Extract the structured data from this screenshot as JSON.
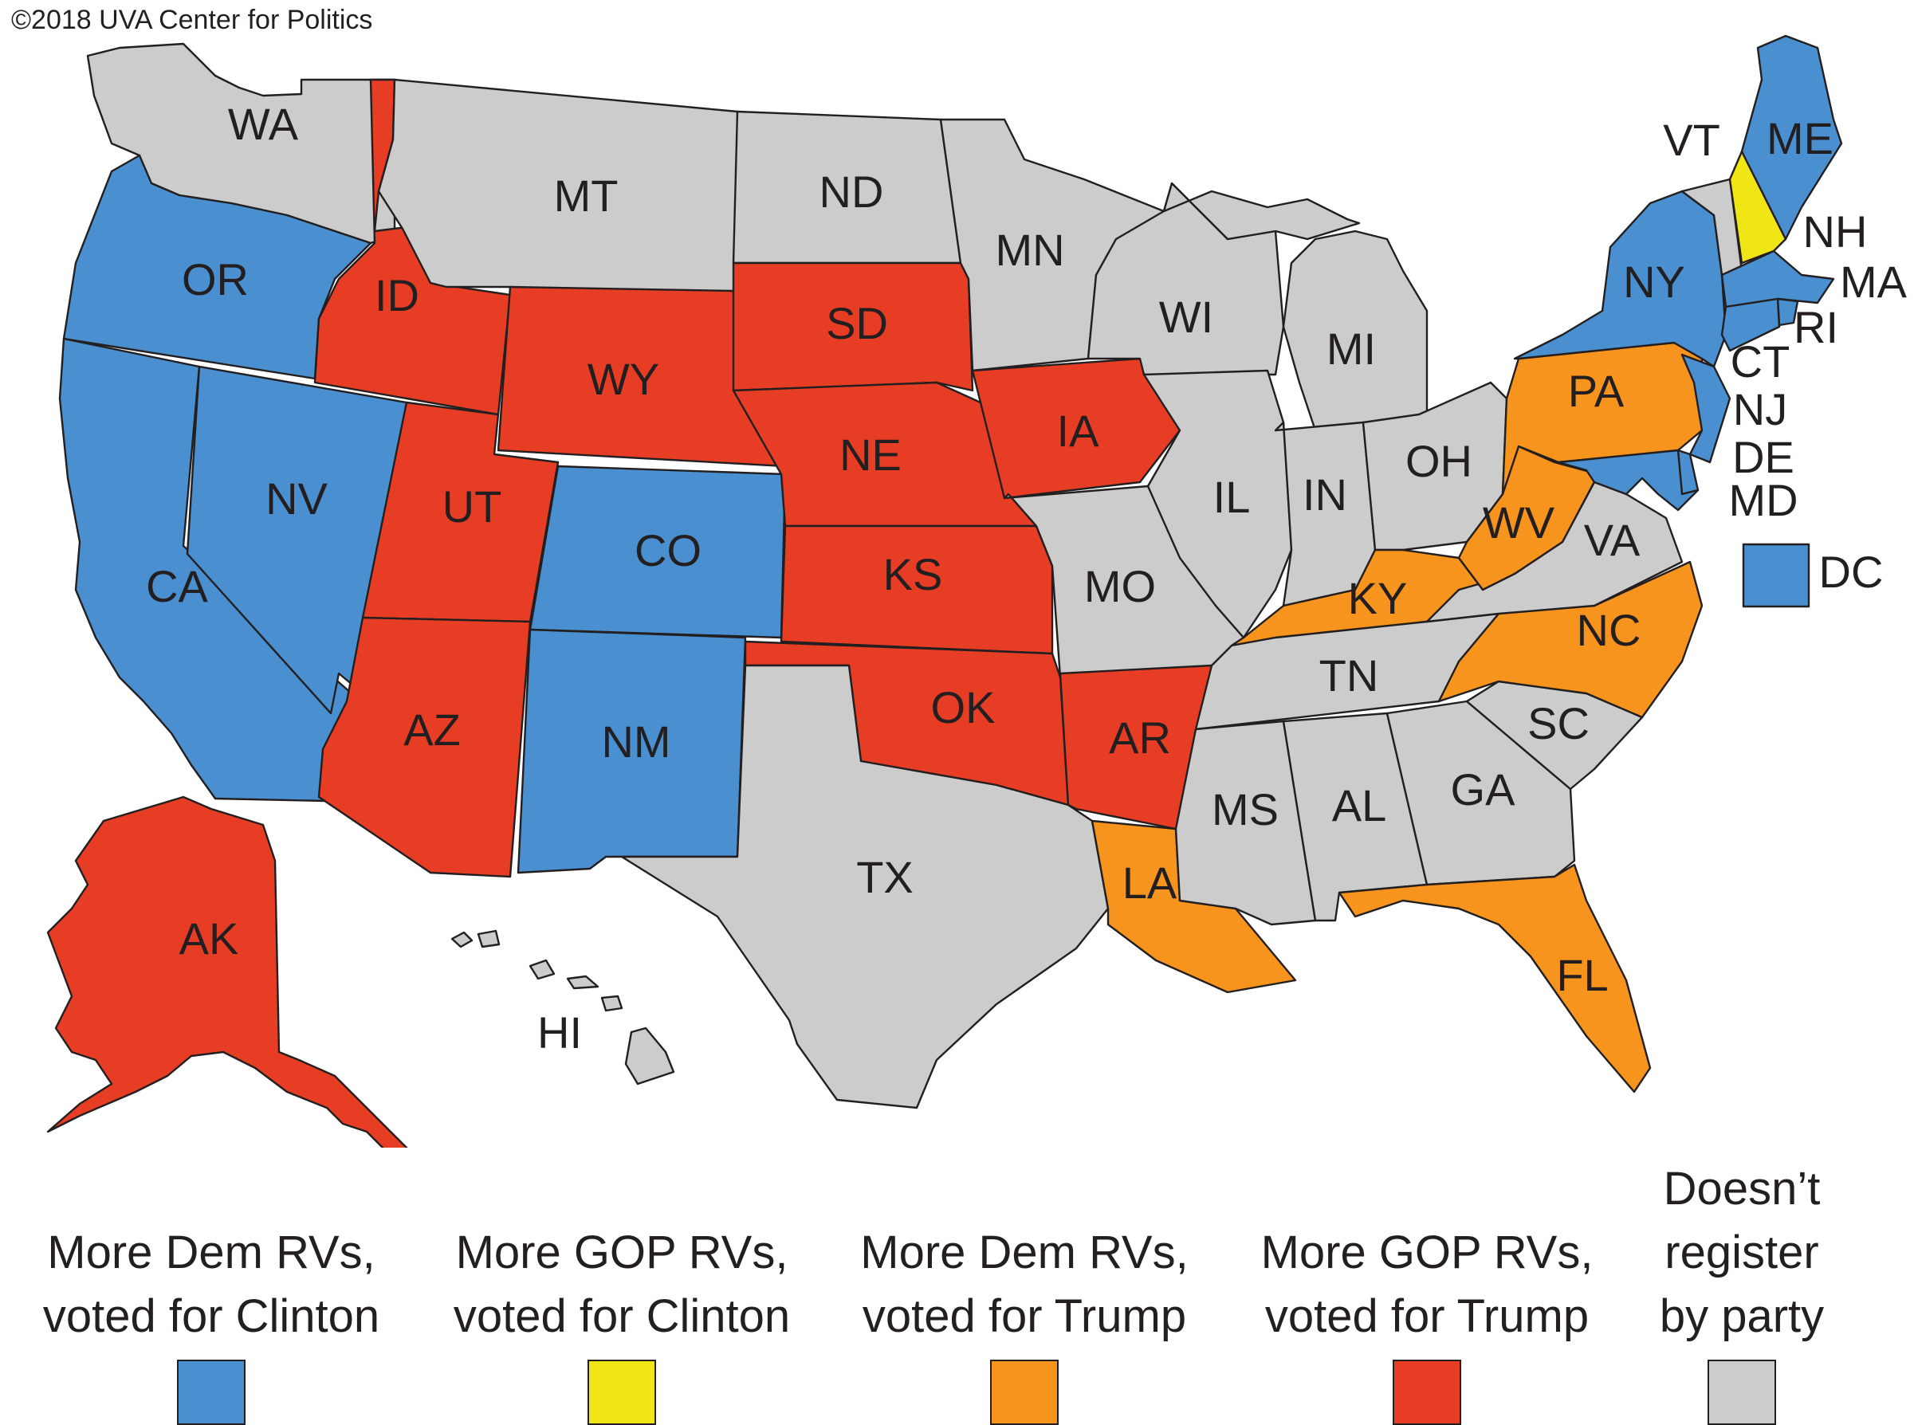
{
  "credit": "©2018 UVA Center for Politics",
  "colors": {
    "dem_clinton": "#4a8fcf",
    "gop_clinton": "#f0e616",
    "dem_trump": "#f6941e",
    "gop_trump": "#e83d25",
    "none": "#cccccc"
  },
  "legend": [
    {
      "label": "More Dem RVs,\nvoted for Clinton",
      "category": "dem_clinton"
    },
    {
      "label": "More GOP RVs,\nvoted for Clinton",
      "category": "gop_clinton"
    },
    {
      "label": "More Dem RVs,\nvoted for Trump",
      "category": "dem_trump"
    },
    {
      "label": "More GOP RVs,\nvoted for Trump",
      "category": "gop_trump"
    },
    {
      "label": "Doesn’t\nregister\nby party",
      "category": "none"
    }
  ],
  "states": {
    "WA": "none",
    "OR": "dem_clinton",
    "CA": "dem_clinton",
    "NV": "dem_clinton",
    "ID": "gop_trump",
    "MT": "none",
    "WY": "gop_trump",
    "UT": "gop_trump",
    "AZ": "gop_trump",
    "CO": "dem_clinton",
    "NM": "dem_clinton",
    "ND": "none",
    "SD": "gop_trump",
    "NE": "gop_trump",
    "KS": "gop_trump",
    "OK": "gop_trump",
    "TX": "none",
    "MN": "none",
    "IA": "gop_trump",
    "MO": "none",
    "AR": "gop_trump",
    "LA": "dem_trump",
    "WI": "none",
    "IL": "none",
    "MI": "none",
    "IN": "none",
    "OH": "none",
    "KY": "dem_trump",
    "TN": "none",
    "MS": "none",
    "AL": "none",
    "GA": "none",
    "FL": "dem_trump",
    "SC": "none",
    "NC": "dem_trump",
    "VA": "none",
    "WV": "dem_trump",
    "PA": "dem_trump",
    "NY": "dem_clinton",
    "VT": "none",
    "NH": "gop_clinton",
    "ME": "dem_clinton",
    "MA": "dem_clinton",
    "RI": "dem_clinton",
    "CT": "dem_clinton",
    "NJ": "dem_clinton",
    "DE": "dem_clinton",
    "MD": "dem_clinton",
    "DC": "dem_clinton",
    "AK": "gop_trump",
    "HI": "none"
  },
  "labels": {
    "WA": "WA",
    "OR": "OR",
    "CA": "CA",
    "NV": "NV",
    "ID": "ID",
    "MT": "MT",
    "WY": "WY",
    "UT": "UT",
    "AZ": "AZ",
    "CO": "CO",
    "NM": "NM",
    "ND": "ND",
    "SD": "SD",
    "NE": "NE",
    "KS": "KS",
    "OK": "OK",
    "TX": "TX",
    "MN": "MN",
    "IA": "IA",
    "MO": "MO",
    "AR": "AR",
    "LA": "LA",
    "WI": "WI",
    "IL": "IL",
    "MI": "MI",
    "IN": "IN",
    "OH": "OH",
    "KY": "KY",
    "TN": "TN",
    "MS": "MS",
    "AL": "AL",
    "GA": "GA",
    "FL": "FL",
    "SC": "SC",
    "NC": "NC",
    "VA": "VA",
    "WV": "WV",
    "PA": "PA",
    "NY": "NY",
    "VT": "VT",
    "NH": "NH",
    "ME": "ME",
    "MA": "MA",
    "RI": "RI",
    "CT": "CT",
    "NJ": "NJ",
    "DE": "DE",
    "MD": "MD",
    "DC": "DC",
    "AK": "AK",
    "HI": "HI"
  }
}
